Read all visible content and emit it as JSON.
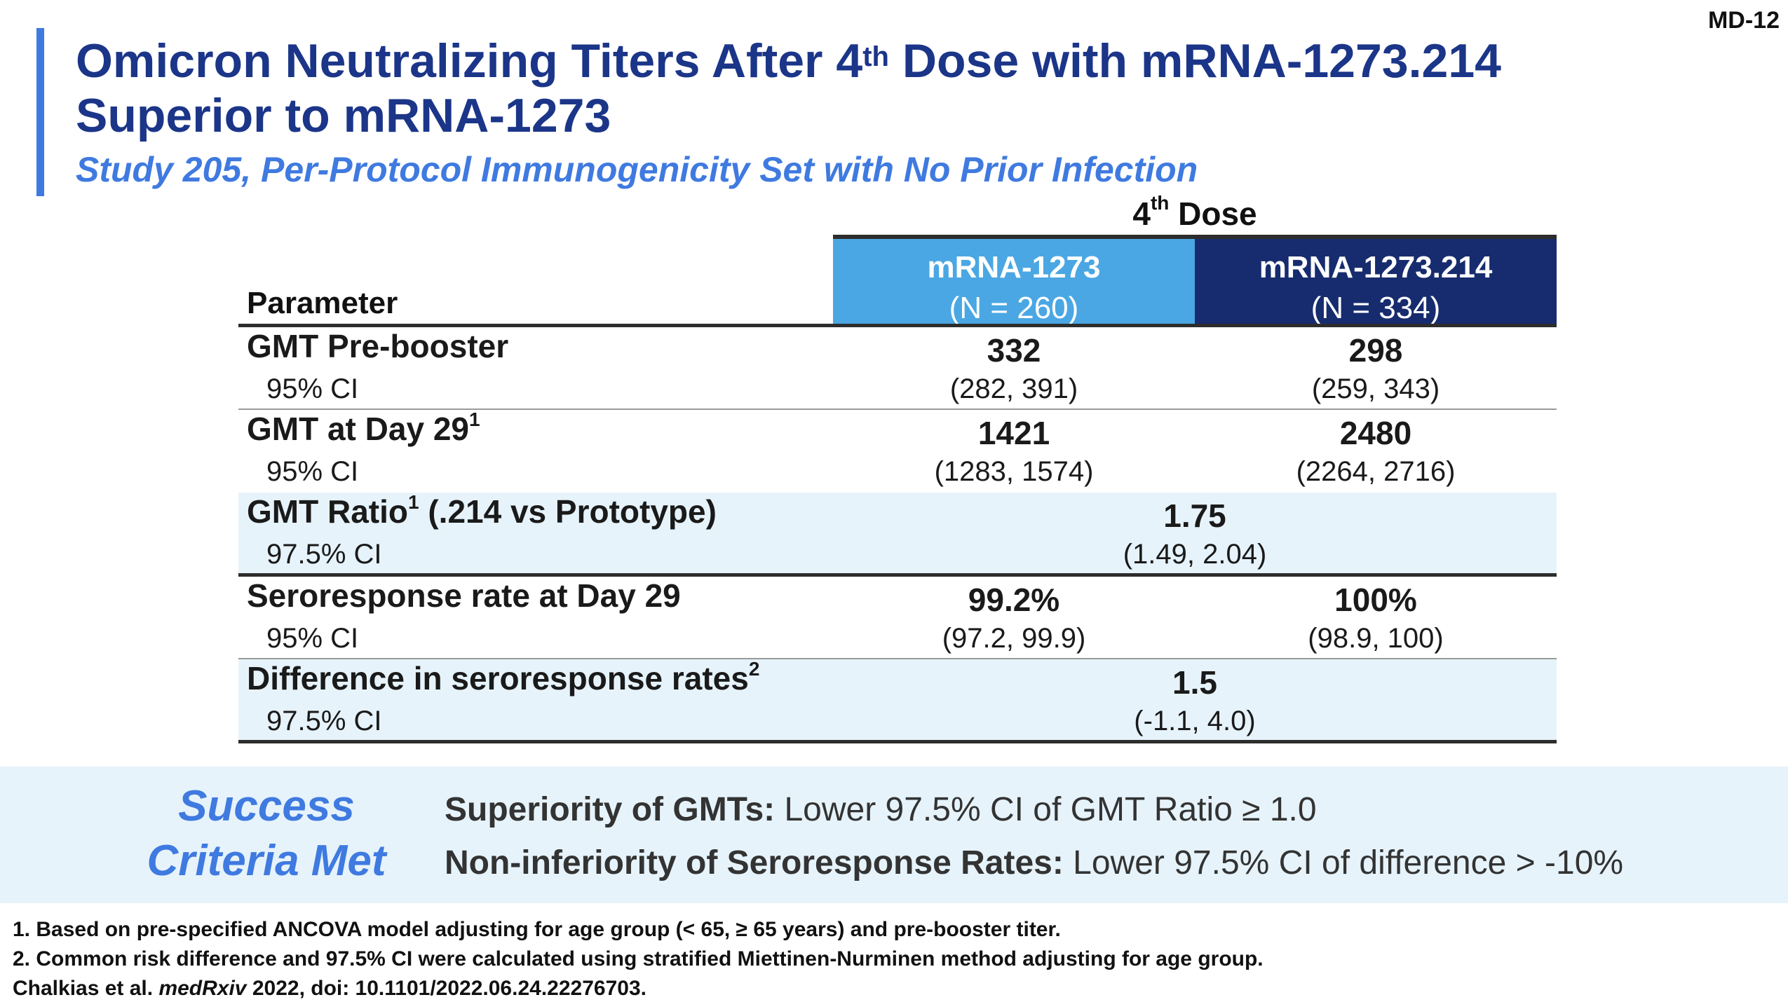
{
  "slide_id": "MD-12",
  "title_line1_pre": "Omicron Neutralizing Titers After 4",
  "title_line1_sup": "th",
  "title_line1_post": " Dose with mRNA-1273.214",
  "title_line2": "Superior to mRNA-1273",
  "subtitle": "Study 205, Per-Protocol Immunogenicity Set with No Prior Infection",
  "table": {
    "dose_header_pre": "4",
    "dose_header_sup": "th",
    "dose_header_post": " Dose",
    "param_header": "Parameter",
    "col_a": {
      "name": "mRNA-1273",
      "n": "(N = 260)",
      "color": "#4aa7e3"
    },
    "col_b": {
      "name": "mRNA-1273.214",
      "n": "(N = 334)",
      "color": "#172c6e"
    },
    "rows": [
      {
        "label": "GMT Pre-booster",
        "sup": "",
        "sublabel": "95% CI",
        "a_value": "332",
        "a_ci": "(282, 391)",
        "b_value": "298",
        "b_ci": "(259, 343)"
      },
      {
        "label": "GMT at Day 29",
        "sup": "1",
        "sublabel": "95% CI",
        "a_value": "1421",
        "a_ci": "(1283, 1574)",
        "b_value": "2480",
        "b_ci": "(2264, 2716)"
      },
      {
        "label": "GMT Ratio",
        "sup": "1",
        "label_post": " (.214 vs Prototype)",
        "sublabel": "97.5% CI",
        "value": "1.75",
        "ci": "(1.49, 2.04)"
      },
      {
        "label": "Seroresponse rate at Day 29",
        "sup": "",
        "sublabel": "95% CI",
        "a_value": "99.2%",
        "a_ci": "(97.2, 99.9)",
        "b_value": "100%",
        "b_ci": "(98.9, 100)"
      },
      {
        "label": "Difference in seroresponse rates",
        "sup": "2",
        "sublabel": "97.5% CI",
        "value": "1.5",
        "ci": "(-1.1, 4.0)"
      }
    ]
  },
  "success": {
    "title_line1": "Success",
    "title_line2": "Criteria Met",
    "criteria": [
      {
        "bold": "Superiority of GMTs:",
        "text": " Lower 97.5% CI of GMT Ratio ≥ 1.0"
      },
      {
        "bold": "Non-inferiority of Seroresponse Rates:",
        "text": " Lower 97.5% CI of difference > -10%"
      }
    ]
  },
  "footnotes": {
    "note1": "1. Based on pre-specified ANCOVA model adjusting for age group (< 65, ≥ 65 years) and pre-booster titer.",
    "note2": "2. Common risk difference and 97.5% CI were calculated using stratified Miettinen-Nurminen method adjusting for age group.",
    "citation_pre": "Chalkias et al. ",
    "citation_journal": "medRxiv",
    "citation_post": " 2022, doi: 10.1101/2022.06.24.22276703."
  },
  "colors": {
    "title": "#1b3588",
    "accent": "#3f7ae0",
    "shade": "#e6f3fb"
  }
}
